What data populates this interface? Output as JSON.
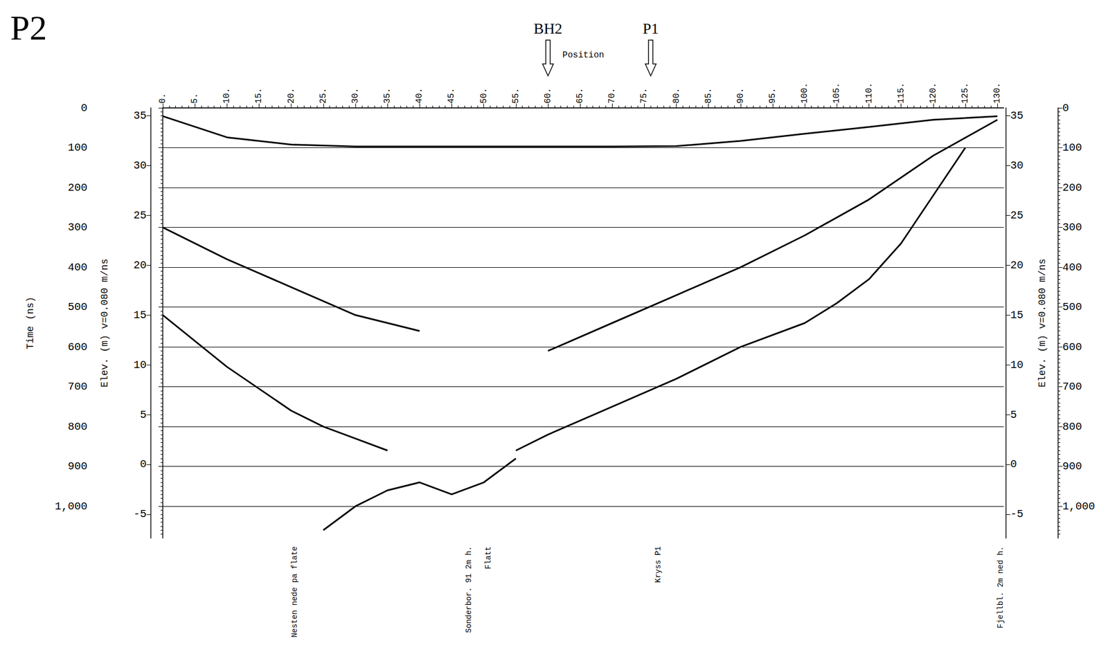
{
  "chart_data": {
    "type": "line",
    "title": "P2",
    "xlabel": "Position",
    "ylabel": "Time (ns)",
    "y2label": "Elev. (m) v=0.080 m/ns",
    "xlim": [
      0,
      131
    ],
    "xticks": [
      {
        "value": 0,
        "label": "0."
      },
      {
        "value": 5,
        "label": "5."
      },
      {
        "value": 10,
        "label": "10."
      },
      {
        "value": 15,
        "label": "15."
      },
      {
        "value": 20,
        "label": "20."
      },
      {
        "value": 25,
        "label": "25."
      },
      {
        "value": 30,
        "label": "30."
      },
      {
        "value": 35,
        "label": "35."
      },
      {
        "value": 40,
        "label": "40."
      },
      {
        "value": 45,
        "label": "45."
      },
      {
        "value": 50,
        "label": "50."
      },
      {
        "value": 55,
        "label": "55."
      },
      {
        "value": 60,
        "label": "60."
      },
      {
        "value": 65,
        "label": "65."
      },
      {
        "value": 70,
        "label": "70."
      },
      {
        "value": 75,
        "label": "75."
      },
      {
        "value": 80,
        "label": "80."
      },
      {
        "value": 85,
        "label": "85."
      },
      {
        "value": 90,
        "label": "90."
      },
      {
        "value": 95,
        "label": "95."
      },
      {
        "value": 100,
        "label": "100."
      },
      {
        "value": 105,
        "label": "105."
      },
      {
        "value": 110,
        "label": "110."
      },
      {
        "value": 115,
        "label": "115."
      },
      {
        "value": 120,
        "label": "120."
      },
      {
        "value": 125,
        "label": "125."
      },
      {
        "value": 130,
        "label": "130."
      }
    ],
    "ylim": [
      0,
      1080
    ],
    "yticks": [
      0,
      100,
      200,
      300,
      400,
      500,
      600,
      700,
      800,
      900,
      1000
    ],
    "y2lim": [
      -7.4,
      35.8
    ],
    "y2ticks": [
      -5,
      0,
      5,
      10,
      15,
      20,
      25,
      30,
      35
    ],
    "grid": true,
    "color": "#000000",
    "line_style": "solid",
    "series": [
      {
        "x": [
          0,
          10,
          20,
          30,
          40,
          50,
          60,
          70,
          80,
          90,
          100,
          110,
          120,
          130
        ],
        "values": [
          21,
          74,
          92,
          97,
          97,
          97,
          97,
          97,
          96,
          83,
          65,
          48,
          30,
          21
        ]
      },
      {
        "x": [
          0,
          10,
          20,
          30,
          40
        ],
        "values": [
          300,
          380,
          450,
          520,
          560
        ]
      },
      {
        "x": [
          0,
          10,
          20,
          25,
          30,
          35
        ],
        "values": [
          520,
          650,
          760,
          800,
          830,
          860
        ]
      },
      {
        "x": [
          25,
          30,
          35,
          40,
          45,
          50,
          55
        ],
        "values": [
          1060,
          1000,
          960,
          940,
          970,
          940,
          880
        ]
      },
      {
        "x": [
          60,
          70,
          80,
          90,
          100,
          110,
          120,
          130
        ],
        "values": [
          610,
          540,
          470,
          400,
          320,
          230,
          120,
          30
        ]
      },
      {
        "x": [
          55,
          60,
          70,
          80,
          90,
          100,
          105,
          110,
          115,
          120,
          125
        ],
        "values": [
          860,
          820,
          750,
          680,
          600,
          540,
          490,
          430,
          340,
          220,
          100
        ]
      }
    ],
    "markers": [
      {
        "text": "BH2",
        "x": 60
      },
      {
        "text": "P1",
        "x": 76
      }
    ],
    "annotations": [
      {
        "text": "Nesten nede pa flate",
        "x": 20.5
      },
      {
        "text": "Sonderbor. 91 2m h.",
        "x": 47.7
      },
      {
        "text": "Flatt",
        "x": 50.7
      },
      {
        "text": "Kryss P1",
        "x": 77.2
      },
      {
        "text": "Fjellbl. 2m ned h.",
        "x": 130.5
      }
    ]
  }
}
